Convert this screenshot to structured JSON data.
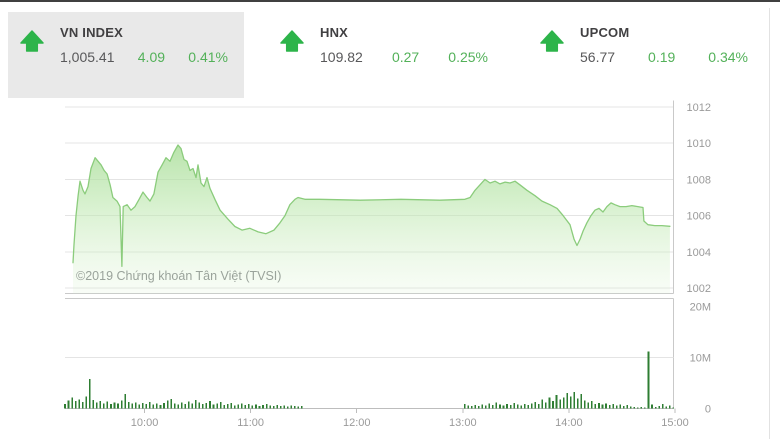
{
  "header": {
    "indices": [
      {
        "name": "VN INDEX",
        "value": "1,005.41",
        "change": "4.09",
        "percent": "0.41%",
        "direction": "up",
        "selected": true
      },
      {
        "name": "HNX",
        "value": "109.82",
        "change": "0.27",
        "percent": "0.25%",
        "direction": "up",
        "selected": false
      },
      {
        "name": "UPCOM",
        "value": "56.77",
        "change": "0.19",
        "percent": "0.34%",
        "direction": "up",
        "selected": false
      }
    ]
  },
  "watermark": "©2019 Chứng khoán Tân Việt (TVSI)",
  "colors": {
    "accent_green": "#2db44a",
    "change_green": "#53b159",
    "value_gray": "#58585a",
    "label_dark": "#414042",
    "panel_bg": "#e9e9e9",
    "grid": "#e4e4e4",
    "pane_border": "#c9c9c9",
    "axis_line": "#bdbdbd",
    "axis_text": "#9a9a9a",
    "price_line": "#8bcc7c",
    "area_top": "#9bd689",
    "area_mid": "#b9e6aa",
    "area_bottom": "#d9f2cf",
    "volume_bar": "#2e7d32",
    "watermark_gray": "#9aa39b"
  },
  "chart_data": {
    "type": "area",
    "title": "VN INDEX intraday price with volume",
    "legend": false,
    "grid": true,
    "close_value": 1005.41,
    "x": {
      "unit": "minutes since 09:15",
      "range": [
        0,
        345
      ],
      "tick_minutes": [
        45,
        105,
        165,
        225,
        285,
        345
      ],
      "tick_labels": [
        "10:00",
        "11:00",
        "12:00",
        "13:00",
        "14:00",
        "15:00"
      ]
    },
    "price_axis": {
      "range": [
        1002,
        1012
      ],
      "ticks": [
        1012,
        1010,
        1008,
        1006,
        1004,
        1002
      ]
    },
    "volume_axis": {
      "range_millions": [
        0,
        20
      ],
      "ticks": [
        {
          "label": "20M",
          "value": 20
        },
        {
          "label": "10M",
          "value": 10
        },
        {
          "label": "0",
          "value": 0
        }
      ]
    },
    "price_series": [
      [
        4.5,
        1003.4
      ],
      [
        5.1,
        1004.4
      ],
      [
        6.2,
        1006.0
      ],
      [
        7.4,
        1007.1
      ],
      [
        8.5,
        1007.9
      ],
      [
        10.2,
        1007.4
      ],
      [
        11.3,
        1007.2
      ],
      [
        13,
        1007.6
      ],
      [
        14.7,
        1008.6
      ],
      [
        17,
        1009.2
      ],
      [
        18.7,
        1009.0
      ],
      [
        20.4,
        1008.8
      ],
      [
        22.1,
        1008.5
      ],
      [
        23.8,
        1008.3
      ],
      [
        25.5,
        1007.7
      ],
      [
        27.1,
        1007.0
      ],
      [
        29.4,
        1006.8
      ],
      [
        31.1,
        1006.5
      ],
      [
        32.2,
        1003.2
      ],
      [
        32.9,
        1006.5
      ],
      [
        35.1,
        1006.6
      ],
      [
        37.3,
        1006.3
      ],
      [
        39.6,
        1006.5
      ],
      [
        41.9,
        1006.9
      ],
      [
        44.1,
        1007.3
      ],
      [
        46.4,
        1007.0
      ],
      [
        48.1,
        1006.8
      ],
      [
        50.3,
        1007.2
      ],
      [
        52.6,
        1008.4
      ],
      [
        54.9,
        1008.8
      ],
      [
        57.1,
        1009.2
      ],
      [
        59.4,
        1009.0
      ],
      [
        61.6,
        1009.5
      ],
      [
        63.9,
        1009.9
      ],
      [
        65.6,
        1009.7
      ],
      [
        67.3,
        1009.1
      ],
      [
        69,
        1009.0
      ],
      [
        70.7,
        1008.5
      ],
      [
        72.4,
        1008.6
      ],
      [
        74.1,
        1008.1
      ],
      [
        75.2,
        1008.8
      ],
      [
        76.9,
        1007.8
      ],
      [
        78.6,
        1007.6
      ],
      [
        80.3,
        1008.1
      ],
      [
        82,
        1007.5
      ],
      [
        84.8,
        1006.9
      ],
      [
        87.7,
        1006.3
      ],
      [
        92.2,
        1005.8
      ],
      [
        96.1,
        1005.4
      ],
      [
        100.1,
        1005.2
      ],
      [
        104.6,
        1005.3
      ],
      [
        109.2,
        1005.1
      ],
      [
        113.7,
        1005.0
      ],
      [
        118.2,
        1005.2
      ],
      [
        121.6,
        1005.6
      ],
      [
        124.4,
        1006.0
      ],
      [
        127.2,
        1006.6
      ],
      [
        130.1,
        1006.9
      ],
      [
        131.8,
        1007.0
      ],
      [
        135.7,
        1006.9
      ],
      [
        144,
        1006.9
      ],
      [
        167,
        1006.85
      ],
      [
        190,
        1006.9
      ],
      [
        212,
        1006.85
      ],
      [
        226.2,
        1006.9
      ],
      [
        229.1,
        1007.0
      ],
      [
        231.9,
        1007.4
      ],
      [
        234.7,
        1007.7
      ],
      [
        237.5,
        1008.0
      ],
      [
        240.4,
        1007.8
      ],
      [
        243.2,
        1007.9
      ],
      [
        246,
        1007.75
      ],
      [
        248.9,
        1007.85
      ],
      [
        251.7,
        1007.8
      ],
      [
        254.5,
        1007.9
      ],
      [
        257.3,
        1007.7
      ],
      [
        261.3,
        1007.4
      ],
      [
        265.8,
        1007.1
      ],
      [
        269.8,
        1006.8
      ],
      [
        274.3,
        1006.6
      ],
      [
        278.3,
        1006.4
      ],
      [
        281.7,
        1006.0
      ],
      [
        285.6,
        1005.5
      ],
      [
        287.9,
        1004.7
      ],
      [
        289.6,
        1004.35
      ],
      [
        291.3,
        1004.7
      ],
      [
        293,
        1005.15
      ],
      [
        295.2,
        1005.6
      ],
      [
        297.5,
        1006.0
      ],
      [
        299.7,
        1006.3
      ],
      [
        302,
        1006.4
      ],
      [
        304.3,
        1006.2
      ],
      [
        306.5,
        1006.5
      ],
      [
        308.8,
        1006.7
      ],
      [
        311,
        1006.6
      ],
      [
        313.9,
        1006.5
      ],
      [
        317.3,
        1006.5
      ],
      [
        320.6,
        1006.55
      ],
      [
        324,
        1006.5
      ],
      [
        326.9,
        1006.45
      ],
      [
        327.4,
        1005.7
      ],
      [
        329.7,
        1005.5
      ],
      [
        333.6,
        1005.45
      ],
      [
        337.6,
        1005.45
      ],
      [
        342.1,
        1005.41
      ]
    ],
    "volume_series_millions": [
      {
        "start": 0,
        "step": 2,
        "values": [
          0.9,
          1.6,
          2.2,
          1.5,
          1.8,
          1.3,
          2.4,
          5.8,
          1.7,
          1.2,
          1.5,
          1.0,
          1.4,
          0.9,
          1.2,
          1.0,
          1.6,
          2.8,
          1.3,
          1.0,
          1.2,
          0.8,
          1.1,
          0.9,
          1.3,
          0.8,
          1.0,
          0.7,
          1.1,
          1.6,
          1.9,
          1.0,
          0.8,
          1.2,
          0.9,
          1.4,
          1.0,
          1.7,
          1.2,
          0.9,
          1.1,
          1.5,
          0.8,
          1.0,
          1.3,
          0.7,
          0.9,
          1.1,
          0.6,
          0.8,
          1.0,
          0.7,
          0.9,
          0.6,
          0.8,
          0.5,
          0.7,
          0.9,
          0.6,
          0.5,
          0.7,
          0.5,
          0.6,
          0.4,
          0.6,
          0.5,
          0.4,
          0.5
        ]
      },
      {
        "start": 226,
        "step": 2,
        "values": [
          0.9,
          0.6,
          0.5,
          0.7,
          0.5,
          0.8,
          0.6,
          1.0,
          0.7,
          1.2,
          0.8,
          0.6,
          0.9,
          0.7,
          1.1,
          0.8,
          0.6,
          0.9,
          0.7,
          1.0,
          1.3,
          0.9,
          1.8,
          1.2,
          2.2,
          1.5,
          2.6,
          1.8,
          2.2,
          3.0,
          2.4,
          3.2,
          2.0,
          2.8,
          1.6,
          1.2,
          1.5,
          0.9,
          1.1,
          0.8,
          1.0,
          0.7,
          0.9,
          0.6,
          0.8,
          0.5,
          0.7,
          0.4,
          0.3,
          0.2,
          0.3,
          0.2,
          11.2,
          0.8,
          0.3,
          0.5,
          0.9,
          0.4,
          0.6,
          0.2
        ]
      }
    ]
  }
}
